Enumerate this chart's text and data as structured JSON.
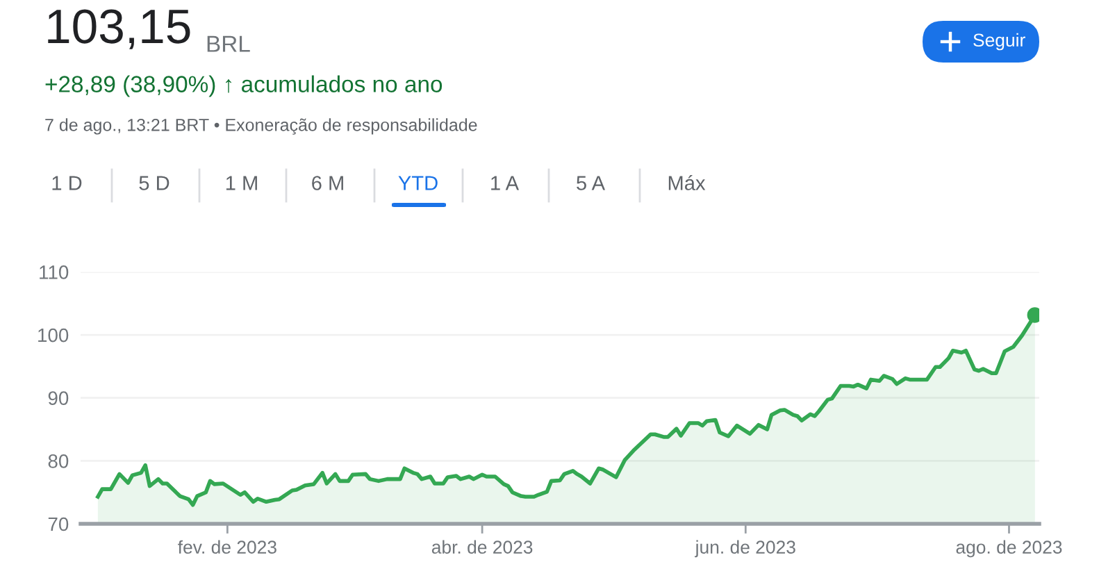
{
  "chart_data": {
    "type": "area",
    "title": "103,15",
    "annotations": [
      "BRL",
      "+28,89 (38,90%) ↑ acumulados no ano",
      "7 de ago., 13:21 BRT • Exoneração de responsabilidade",
      "Seguir",
      "1 D",
      "5 D",
      "1 M",
      "6 M",
      "YTD",
      "1 A",
      "5 A",
      "Máx"
    ],
    "series": [
      {
        "color": "#34a853",
        "x": [
          "2023-01-02",
          "2023-01-03",
          "2023-01-05",
          "2023-01-07",
          "2023-01-09",
          "2023-01-10",
          "2023-01-12",
          "2023-01-13",
          "2023-01-14",
          "2023-01-16",
          "2023-01-17",
          "2023-01-18",
          "2023-01-21",
          "2023-01-23",
          "2023-01-24",
          "2023-01-25",
          "2023-01-27",
          "2023-01-28",
          "2023-01-29",
          "2023-01-31",
          "2023-02-04",
          "2023-02-05",
          "2023-02-07",
          "2023-02-08",
          "2023-02-10",
          "2023-02-12",
          "2023-02-13",
          "2023-02-16",
          "2023-02-17",
          "2023-02-19",
          "2023-02-21",
          "2023-02-23",
          "2023-02-24",
          "2023-02-26",
          "2023-02-27",
          "2023-03-01",
          "2023-03-02",
          "2023-03-05",
          "2023-03-06",
          "2023-03-08",
          "2023-03-10",
          "2023-03-13",
          "2023-03-14",
          "2023-03-16",
          "2023-03-17",
          "2023-03-18",
          "2023-03-20",
          "2023-03-21",
          "2023-03-23",
          "2023-03-24",
          "2023-03-26",
          "2023-03-27",
          "2023-03-29",
          "2023-03-30",
          "2023-04-01",
          "2023-04-02",
          "2023-04-04",
          "2023-04-06",
          "2023-04-07",
          "2023-04-08",
          "2023-04-10",
          "2023-04-11",
          "2023-04-13",
          "2023-04-14",
          "2023-04-16",
          "2023-04-17",
          "2023-04-19",
          "2023-04-20",
          "2023-04-22",
          "2023-04-23",
          "2023-04-24",
          "2023-04-26",
          "2023-04-28",
          "2023-04-29",
          "2023-05-02",
          "2023-05-04",
          "2023-05-06",
          "2023-05-10",
          "2023-05-11",
          "2023-05-13",
          "2023-05-14",
          "2023-05-16",
          "2023-05-17",
          "2023-05-19",
          "2023-05-21",
          "2023-05-22",
          "2023-05-23",
          "2023-05-25",
          "2023-05-26",
          "2023-05-28",
          "2023-05-30",
          "2023-06-02",
          "2023-06-04",
          "2023-06-06",
          "2023-06-07",
          "2023-06-09",
          "2023-06-10",
          "2023-06-12",
          "2023-06-13",
          "2023-06-14",
          "2023-06-16",
          "2023-06-17",
          "2023-06-18",
          "2023-06-20",
          "2023-06-21",
          "2023-06-23",
          "2023-06-25",
          "2023-06-26",
          "2023-06-27",
          "2023-06-29",
          "2023-06-30",
          "2023-07-02",
          "2023-07-03",
          "2023-07-05",
          "2023-07-06",
          "2023-07-08",
          "2023-07-09",
          "2023-07-13",
          "2023-07-15",
          "2023-07-16",
          "2023-07-18",
          "2023-07-19",
          "2023-07-21",
          "2023-07-22",
          "2023-07-24",
          "2023-07-25",
          "2023-07-26",
          "2023-07-28",
          "2023-07-29",
          "2023-07-31",
          "2023-08-02",
          "2023-08-04",
          "2023-08-07"
        ],
        "values": [
          74.3,
          75.5,
          75.5,
          77.9,
          76.5,
          77.7,
          78.1,
          79.3,
          76.0,
          77.1,
          76.4,
          76.4,
          74.4,
          73.9,
          73.0,
          74.4,
          75.0,
          76.8,
          76.3,
          76.4,
          74.6,
          75.0,
          73.5,
          74.0,
          73.5,
          73.8,
          73.9,
          75.3,
          75.4,
          76.1,
          76.3,
          78.1,
          76.4,
          77.9,
          76.8,
          76.8,
          77.8,
          77.9,
          77.1,
          76.8,
          77.1,
          77.1,
          78.8,
          78.1,
          77.9,
          77.1,
          77.5,
          76.4,
          76.4,
          77.4,
          77.6,
          77.1,
          77.5,
          77.1,
          77.8,
          77.5,
          77.5,
          76.3,
          76.0,
          75.0,
          74.4,
          74.3,
          74.3,
          74.6,
          75.1,
          76.8,
          76.9,
          77.9,
          78.4,
          77.9,
          77.5,
          76.4,
          78.8,
          78.6,
          77.4,
          80.1,
          81.6,
          84.2,
          84.2,
          83.8,
          83.8,
          85.1,
          84.0,
          86.0,
          86.0,
          85.6,
          86.3,
          86.5,
          84.5,
          83.9,
          85.6,
          84.3,
          85.7,
          85.0,
          87.3,
          88.0,
          88.1,
          87.3,
          87.1,
          86.4,
          87.4,
          87.1,
          87.9,
          89.7,
          89.9,
          91.9,
          91.9,
          91.8,
          92.1,
          91.5,
          92.9,
          92.7,
          93.5,
          93.0,
          92.2,
          93.1,
          92.9,
          92.9,
          94.9,
          94.9,
          96.3,
          97.5,
          97.2,
          97.5,
          94.5,
          94.3,
          94.6,
          93.9,
          93.9,
          97.4,
          98.1,
          99.9,
          103.15
        ]
      },
      {
        "color": "#34a853",
        "type": "scatter",
        "marker": "circle",
        "x": [
          "2023-08-07"
        ],
        "values": [
          103.15
        ]
      }
    ],
    "xlim": [
      "2022-12-29",
      "2023-08-08"
    ],
    "xticks": [
      {
        "value": "2023-02-01",
        "label": "fev. de 2023"
      },
      {
        "value": "2023-04-01",
        "label": "abr. de 2023"
      },
      {
        "value": "2023-06-01",
        "label": "jun. de 2023"
      },
      {
        "value": "2023-08-01",
        "label": "ago. de 2023"
      }
    ],
    "ylim": [
      70,
      110
    ],
    "yticks": [
      70,
      80,
      90,
      100,
      110
    ],
    "grid": "y",
    "legend": false
  }
}
